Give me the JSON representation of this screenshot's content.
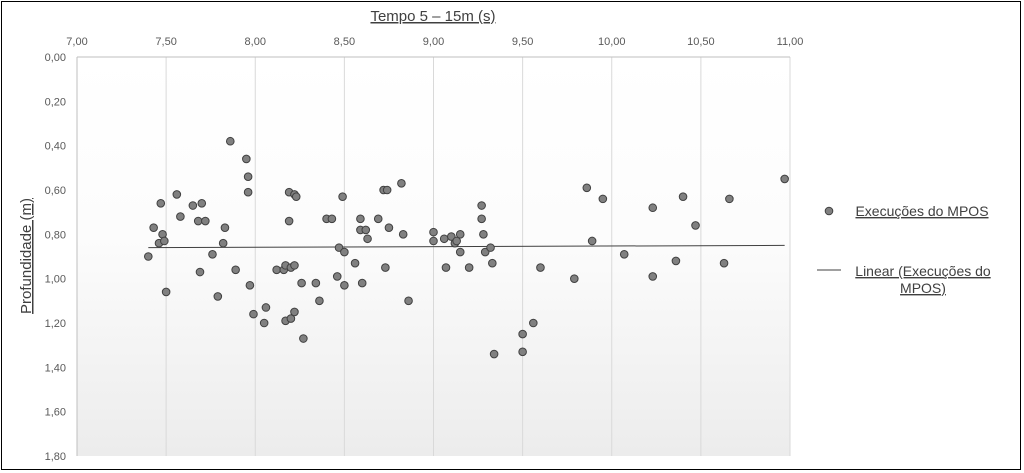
{
  "chart_data": {
    "type": "scatter",
    "title": "",
    "xlabel": "Tempo 5 – 15m (s)",
    "ylabel": "Profundidade (m)",
    "xlim": [
      7.0,
      11.0
    ],
    "ylim": [
      0.0,
      1.8
    ],
    "y_axis_inverted": true,
    "x_axis_position": "top",
    "x_ticks": [
      "7,00",
      "7,50",
      "8,00",
      "8,50",
      "9,00",
      "9,50",
      "10,00",
      "10,50",
      "11,00"
    ],
    "y_ticks": [
      "0,00",
      "0,20",
      "0,40",
      "0,60",
      "0,80",
      "1,00",
      "1,20",
      "1,40",
      "1,60",
      "1,80"
    ],
    "grid": "vertical",
    "legend_position": "right",
    "series": [
      {
        "name": "Execuções do MPOS",
        "color": "#808080",
        "points": [
          [
            7.4,
            0.9
          ],
          [
            7.43,
            0.77
          ],
          [
            7.46,
            0.84
          ],
          [
            7.47,
            0.66
          ],
          [
            7.48,
            0.8
          ],
          [
            7.49,
            0.83
          ],
          [
            7.5,
            1.06
          ],
          [
            7.56,
            0.62
          ],
          [
            7.58,
            0.72
          ],
          [
            7.65,
            0.67
          ],
          [
            7.68,
            0.74
          ],
          [
            7.69,
            0.97
          ],
          [
            7.7,
            0.66
          ],
          [
            7.72,
            0.74
          ],
          [
            7.76,
            0.89
          ],
          [
            7.79,
            1.08
          ],
          [
            7.82,
            0.84
          ],
          [
            7.83,
            0.77
          ],
          [
            7.86,
            0.38
          ],
          [
            7.89,
            0.96
          ],
          [
            7.95,
            0.46
          ],
          [
            7.96,
            0.54
          ],
          [
            7.96,
            0.61
          ],
          [
            7.97,
            1.03
          ],
          [
            7.99,
            1.16
          ],
          [
            8.05,
            1.2
          ],
          [
            8.06,
            1.13
          ],
          [
            8.12,
            0.96
          ],
          [
            8.16,
            0.96
          ],
          [
            8.17,
            0.94
          ],
          [
            8.17,
            1.19
          ],
          [
            8.19,
            0.61
          ],
          [
            8.19,
            0.74
          ],
          [
            8.2,
            0.95
          ],
          [
            8.2,
            1.18
          ],
          [
            8.22,
            0.62
          ],
          [
            8.22,
            0.94
          ],
          [
            8.22,
            1.15
          ],
          [
            8.23,
            0.63
          ],
          [
            8.26,
            1.02
          ],
          [
            8.27,
            1.27
          ],
          [
            8.34,
            1.02
          ],
          [
            8.36,
            1.1
          ],
          [
            8.4,
            0.73
          ],
          [
            8.43,
            0.73
          ],
          [
            8.46,
            0.99
          ],
          [
            8.47,
            0.86
          ],
          [
            8.49,
            0.63
          ],
          [
            8.5,
            0.88
          ],
          [
            8.5,
            1.03
          ],
          [
            8.56,
            0.93
          ],
          [
            8.59,
            0.73
          ],
          [
            8.59,
            0.78
          ],
          [
            8.6,
            1.02
          ],
          [
            8.62,
            0.78
          ],
          [
            8.63,
            0.82
          ],
          [
            8.69,
            0.73
          ],
          [
            8.72,
            0.6
          ],
          [
            8.73,
            0.95
          ],
          [
            8.74,
            0.6
          ],
          [
            8.75,
            0.77
          ],
          [
            8.82,
            0.57
          ],
          [
            8.83,
            0.8
          ],
          [
            8.86,
            1.1
          ],
          [
            9.0,
            0.79
          ],
          [
            9.0,
            0.83
          ],
          [
            9.06,
            0.82
          ],
          [
            9.07,
            0.95
          ],
          [
            9.1,
            0.81
          ],
          [
            9.12,
            0.84
          ],
          [
            9.13,
            0.83
          ],
          [
            9.15,
            0.88
          ],
          [
            9.15,
            0.8
          ],
          [
            9.2,
            0.95
          ],
          [
            9.27,
            0.67
          ],
          [
            9.27,
            0.73
          ],
          [
            9.28,
            0.8
          ],
          [
            9.29,
            0.88
          ],
          [
            9.32,
            0.86
          ],
          [
            9.33,
            0.93
          ],
          [
            9.34,
            1.34
          ],
          [
            9.5,
            1.25
          ],
          [
            9.5,
            1.33
          ],
          [
            9.56,
            1.2
          ],
          [
            9.6,
            0.95
          ],
          [
            9.79,
            1.0
          ],
          [
            9.86,
            0.59
          ],
          [
            9.89,
            0.83
          ],
          [
            9.95,
            0.64
          ],
          [
            10.07,
            0.89
          ],
          [
            10.23,
            0.68
          ],
          [
            10.23,
            0.99
          ],
          [
            10.36,
            0.92
          ],
          [
            10.4,
            0.63
          ],
          [
            10.47,
            0.76
          ],
          [
            10.63,
            0.93
          ],
          [
            10.66,
            0.64
          ],
          [
            10.97,
            0.55
          ]
        ]
      },
      {
        "name": "Linear (Execuções do MPOS)",
        "type": "line",
        "color": "#404040",
        "points": [
          [
            7.4,
            0.86
          ],
          [
            10.97,
            0.85
          ]
        ]
      }
    ]
  }
}
